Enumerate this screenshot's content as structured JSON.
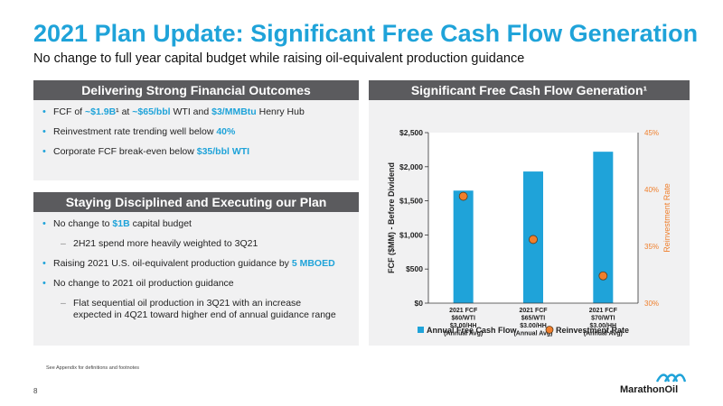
{
  "slide": {
    "title": "2021 Plan Update: Significant Free Cash Flow Generation",
    "subtitle": "No change to full year capital budget while raising oil-equivalent production guidance",
    "footnote": "See Appendix for definitions and footnotes",
    "page_number": "8",
    "logo_text": "MarathonOil"
  },
  "colors": {
    "accent": "#1fa3d9",
    "header_bg": "#5b5b5e",
    "panel_bg": "#f1f1f2",
    "rate": "#f07f2c"
  },
  "financial": {
    "header": "Delivering Strong Financial Outcomes",
    "b1": {
      "p1": "FCF of ",
      "h1": "~$1.9B",
      "p2": "¹ at ",
      "h2": "~$65/bbl",
      "p3": " WTI and ",
      "h3": "$3/MMBtu",
      "p4": " Henry Hub"
    },
    "b2": {
      "p1": "Reinvestment rate trending well below ",
      "h1": "40%"
    },
    "b3": {
      "p1": "Corporate FCF break-even below ",
      "h1": "$35/bbl WTI"
    }
  },
  "discipline": {
    "header": "Staying Disciplined and Executing our Plan",
    "b1": {
      "p1": "No change to ",
      "h1": "$1B",
      "p2": " capital budget"
    },
    "s1": "2H21 spend more heavily weighted to 3Q21",
    "b2": {
      "p1": "Raising 2021 U.S. oil-equivalent production guidance by ",
      "h1": "5 MBOED"
    },
    "b3": "No change to 2021 oil production guidance",
    "s2": {
      "line1": "Flat sequential oil production in 3Q21 with an increase",
      "line2": "expected in 4Q21 toward higher end of annual guidance range"
    }
  },
  "chart_data": {
    "type": "bar",
    "title": "Significant Free Cash Flow Generation¹",
    "categories": [
      [
        "2021 FCF",
        "$60/WTI",
        "$3.00/HH",
        "(Annual Avg)"
      ],
      [
        "2021 FCF",
        "$65/WTI",
        "$3.00/HH",
        "(Annual Avg)"
      ],
      [
        "2021 FCF",
        "$70/WTI",
        "$3.00/HH",
        "(Annual Avg)"
      ]
    ],
    "series": [
      {
        "name": "Annual Free Cash Flow",
        "type": "bar",
        "axis": "left",
        "color": "#1fa3d9",
        "values": [
          1650,
          1930,
          2220
        ]
      },
      {
        "name": "Reinvestment Rate",
        "type": "scatter",
        "axis": "right",
        "color": "#f07f2c",
        "values": [
          39.4,
          35.6,
          32.4
        ]
      }
    ],
    "ylabel": "FCF ($MM) - Before Dividend",
    "ylim": [
      0,
      2500
    ],
    "yticks": [
      "$0",
      "$500",
      "$1,000",
      "$1,500",
      "$2,000",
      "$2,500"
    ],
    "y2label": "Reinvestment Rate",
    "y2lim": [
      30,
      45
    ],
    "y2ticks": [
      "30%",
      "35%",
      "40%",
      "45%"
    ],
    "legend_position": "bottom"
  }
}
